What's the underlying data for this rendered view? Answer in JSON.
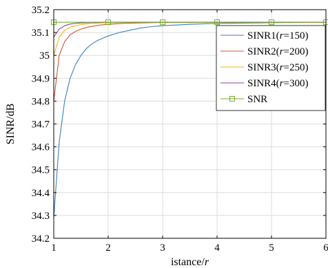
{
  "chart_data": {
    "type": "line",
    "title": "",
    "xlabel_main": "istance/",
    "xlabel_italic": "r",
    "ylabel": "SINR/dB",
    "xlim": [
      1,
      6
    ],
    "ylim": [
      34.2,
      35.2
    ],
    "xticks": [
      1,
      2,
      3,
      4,
      5,
      6
    ],
    "xtick_labels": [
      "1",
      "2",
      "3",
      "4",
      "5",
      "6"
    ],
    "yticks": [
      34.2,
      34.3,
      34.4,
      34.5,
      34.6,
      34.7,
      34.8,
      34.9,
      35,
      35.1,
      35.2
    ],
    "ytick_labels": [
      "34.2",
      "34.3",
      "34.4",
      "34.5",
      "34.6",
      "34.7",
      "34.8",
      "34.9",
      "35",
      "35.1",
      "35.2"
    ],
    "grid": true,
    "legend_position": "top-right",
    "x": [
      1,
      1.1,
      1.2,
      1.3,
      1.4,
      1.5,
      1.6,
      1.7,
      1.8,
      1.9,
      2,
      2.2,
      2.4,
      2.6,
      2.8,
      3,
      3.5,
      4,
      5,
      6
    ],
    "series": [
      {
        "name_parts": [
          "SINR1(",
          "r",
          "=150)"
        ],
        "color": "#3a7ebf",
        "marker": "none",
        "values": [
          34.29,
          34.62,
          34.8,
          34.9,
          34.96,
          35.0,
          35.03,
          35.05,
          35.065,
          35.075,
          35.085,
          35.1,
          35.11,
          35.12,
          35.126,
          35.13,
          35.136,
          35.14,
          35.143,
          35.145
        ]
      },
      {
        "name_parts": [
          "SINR2(",
          "r",
          "=200)"
        ],
        "color": "#d9502a",
        "marker": "none",
        "values": [
          34.8,
          35.0,
          35.06,
          35.09,
          35.105,
          35.115,
          35.122,
          35.127,
          35.131,
          35.134,
          35.136,
          35.139,
          35.141,
          35.142,
          35.143,
          35.144,
          35.144,
          35.145,
          35.145,
          35.145
        ]
      },
      {
        "name_parts": [
          "SINR3(",
          "r",
          "=250)"
        ],
        "color": "#e9b31c",
        "marker": "none",
        "values": [
          35.0,
          35.08,
          35.11,
          35.123,
          35.13,
          35.135,
          35.138,
          35.14,
          35.141,
          35.142,
          35.143,
          35.144,
          35.144,
          35.145,
          35.145,
          35.145,
          35.145,
          35.145,
          35.145,
          35.145
        ]
      },
      {
        "name_parts": [
          "SINR4(",
          "r",
          "=300)"
        ],
        "color": "#8a3f9f",
        "marker": "none",
        "values": [
          35.08,
          35.115,
          35.13,
          35.137,
          35.14,
          35.142,
          35.143,
          35.144,
          35.144,
          35.145,
          35.145,
          35.145,
          35.145,
          35.145,
          35.145,
          35.145,
          35.145,
          35.145,
          35.145,
          35.145
        ]
      },
      {
        "name_parts": [
          "SNR",
          "",
          ""
        ],
        "color": "#77ac30",
        "marker": "square",
        "marker_x": [
          1,
          2,
          3,
          4,
          5,
          6
        ],
        "values": [
          35.145,
          35.145,
          35.145,
          35.145,
          35.145,
          35.145,
          35.145,
          35.145,
          35.145,
          35.145,
          35.145,
          35.145,
          35.145,
          35.145,
          35.145,
          35.145,
          35.145,
          35.145,
          35.145,
          35.145
        ]
      }
    ]
  }
}
